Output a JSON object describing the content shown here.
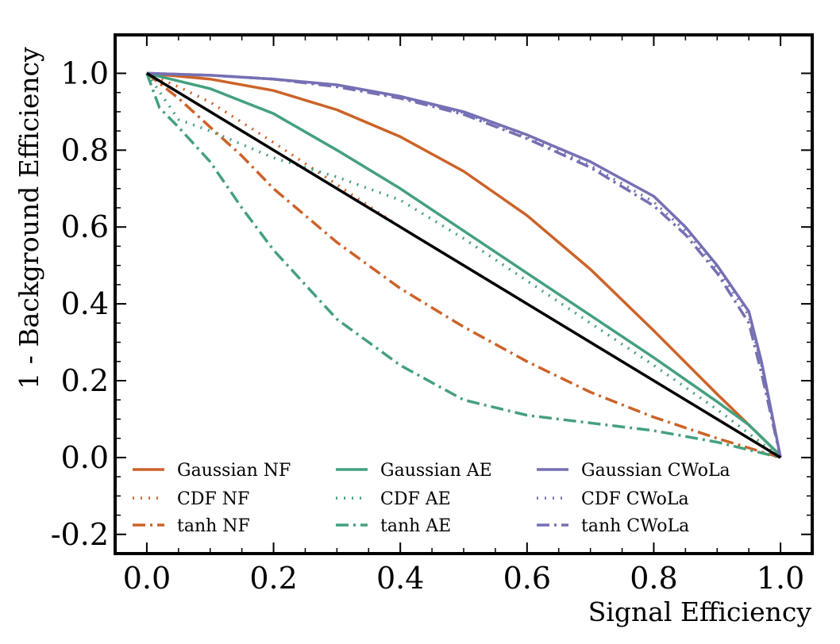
{
  "chart_data": {
    "type": "line",
    "title": "",
    "xlabel": "Signal Efficiency",
    "ylabel": "1 - Background Efficiency",
    "xlim": [
      -0.05,
      1.05
    ],
    "ylim": [
      -0.25,
      1.1
    ],
    "xticks": [
      0.0,
      0.2,
      0.4,
      0.6,
      0.8,
      1.0
    ],
    "xtick_labels": [
      "0.0",
      "0.2",
      "0.4",
      "0.6",
      "0.8",
      "1.0"
    ],
    "yticks": [
      -0.2,
      0.0,
      0.2,
      0.4,
      0.6,
      0.8,
      1.0
    ],
    "ytick_labels": [
      "-0.2",
      "0.0",
      "0.2",
      "0.4",
      "0.6",
      "0.8",
      "1.0"
    ],
    "grid": false,
    "legend_position": "lower-center",
    "legend_columns": 3,
    "colors": {
      "nf": "#cc6329",
      "ae": "#44a07e",
      "cwola": "#7570b3",
      "random": "#000000"
    },
    "series": [
      {
        "name": "Gaussian NF",
        "color": "#cc6329",
        "style": "solid",
        "x": [
          0,
          0.1,
          0.2,
          0.3,
          0.4,
          0.5,
          0.6,
          0.7,
          0.8,
          0.9,
          0.95,
          1.0
        ],
        "y": [
          1.0,
          0.985,
          0.955,
          0.905,
          0.835,
          0.745,
          0.63,
          0.49,
          0.33,
          0.165,
          0.085,
          0.005
        ]
      },
      {
        "name": "CDF NF",
        "color": "#cc6329",
        "style": "dotted",
        "x": [
          0,
          0.05,
          0.1,
          0.2,
          0.3,
          0.4,
          0.5,
          0.6,
          0.7,
          0.8,
          0.9,
          1.0
        ],
        "y": [
          1.0,
          0.965,
          0.925,
          0.82,
          0.71,
          0.6,
          0.5,
          0.4,
          0.3,
          0.2,
          0.1,
          0.0
        ]
      },
      {
        "name": "tanh NF",
        "color": "#cc6329",
        "style": "dashdot",
        "x": [
          0,
          0.05,
          0.1,
          0.15,
          0.2,
          0.3,
          0.4,
          0.5,
          0.6,
          0.7,
          0.8,
          0.9,
          1.0
        ],
        "y": [
          1.0,
          0.935,
          0.86,
          0.785,
          0.7,
          0.56,
          0.44,
          0.34,
          0.25,
          0.17,
          0.105,
          0.05,
          0.0
        ]
      },
      {
        "name": "Gaussian AE",
        "color": "#44a07e",
        "style": "solid",
        "x": [
          0,
          0.1,
          0.2,
          0.3,
          0.4,
          0.5,
          0.6,
          0.7,
          0.8,
          0.9,
          0.95,
          1.0
        ],
        "y": [
          1.0,
          0.96,
          0.895,
          0.8,
          0.7,
          0.59,
          0.48,
          0.37,
          0.26,
          0.145,
          0.085,
          0.005
        ]
      },
      {
        "name": "CDF AE",
        "color": "#44a07e",
        "style": "dotted",
        "x": [
          0,
          0.05,
          0.1,
          0.2,
          0.3,
          0.4,
          0.5,
          0.6,
          0.7,
          0.8,
          0.9,
          1.0
        ],
        "y": [
          1.0,
          0.88,
          0.85,
          0.78,
          0.73,
          0.67,
          0.57,
          0.46,
          0.35,
          0.24,
          0.125,
          0.0
        ]
      },
      {
        "name": "tanh AE",
        "color": "#44a07e",
        "style": "dashdot",
        "x": [
          0,
          0.02,
          0.05,
          0.1,
          0.15,
          0.2,
          0.3,
          0.4,
          0.5,
          0.6,
          0.7,
          0.8,
          0.9,
          1.0
        ],
        "y": [
          1.0,
          0.91,
          0.86,
          0.77,
          0.65,
          0.54,
          0.36,
          0.24,
          0.15,
          0.11,
          0.09,
          0.07,
          0.04,
          0.0
        ]
      },
      {
        "name": "Gaussian CWoLa",
        "color": "#7570b3",
        "style": "solid",
        "x": [
          0,
          0.1,
          0.2,
          0.3,
          0.4,
          0.5,
          0.6,
          0.7,
          0.8,
          0.85,
          0.9,
          0.95,
          0.97,
          1.0
        ],
        "y": [
          1.0,
          0.995,
          0.985,
          0.97,
          0.94,
          0.9,
          0.84,
          0.77,
          0.68,
          0.6,
          0.5,
          0.38,
          0.25,
          0.0
        ]
      },
      {
        "name": "CDF CWoLa",
        "color": "#7570b3",
        "style": "dotted",
        "x": [
          0,
          0.1,
          0.2,
          0.3,
          0.4,
          0.5,
          0.6,
          0.7,
          0.8,
          0.85,
          0.9,
          0.95,
          0.97,
          1.0
        ],
        "y": [
          1.0,
          0.995,
          0.985,
          0.968,
          0.938,
          0.897,
          0.835,
          0.76,
          0.665,
          0.59,
          0.49,
          0.37,
          0.24,
          0.0
        ]
      },
      {
        "name": "tanh CWoLa",
        "color": "#7570b3",
        "style": "dashdot",
        "x": [
          0,
          0.1,
          0.2,
          0.3,
          0.4,
          0.5,
          0.6,
          0.7,
          0.8,
          0.85,
          0.9,
          0.95,
          0.97,
          1.0
        ],
        "y": [
          1.0,
          0.995,
          0.985,
          0.965,
          0.935,
          0.893,
          0.83,
          0.755,
          0.655,
          0.58,
          0.48,
          0.35,
          0.22,
          0.0
        ]
      }
    ],
    "reference_line": {
      "color": "#000000",
      "style": "solid",
      "x": [
        0,
        1
      ],
      "y": [
        1,
        0
      ]
    }
  }
}
